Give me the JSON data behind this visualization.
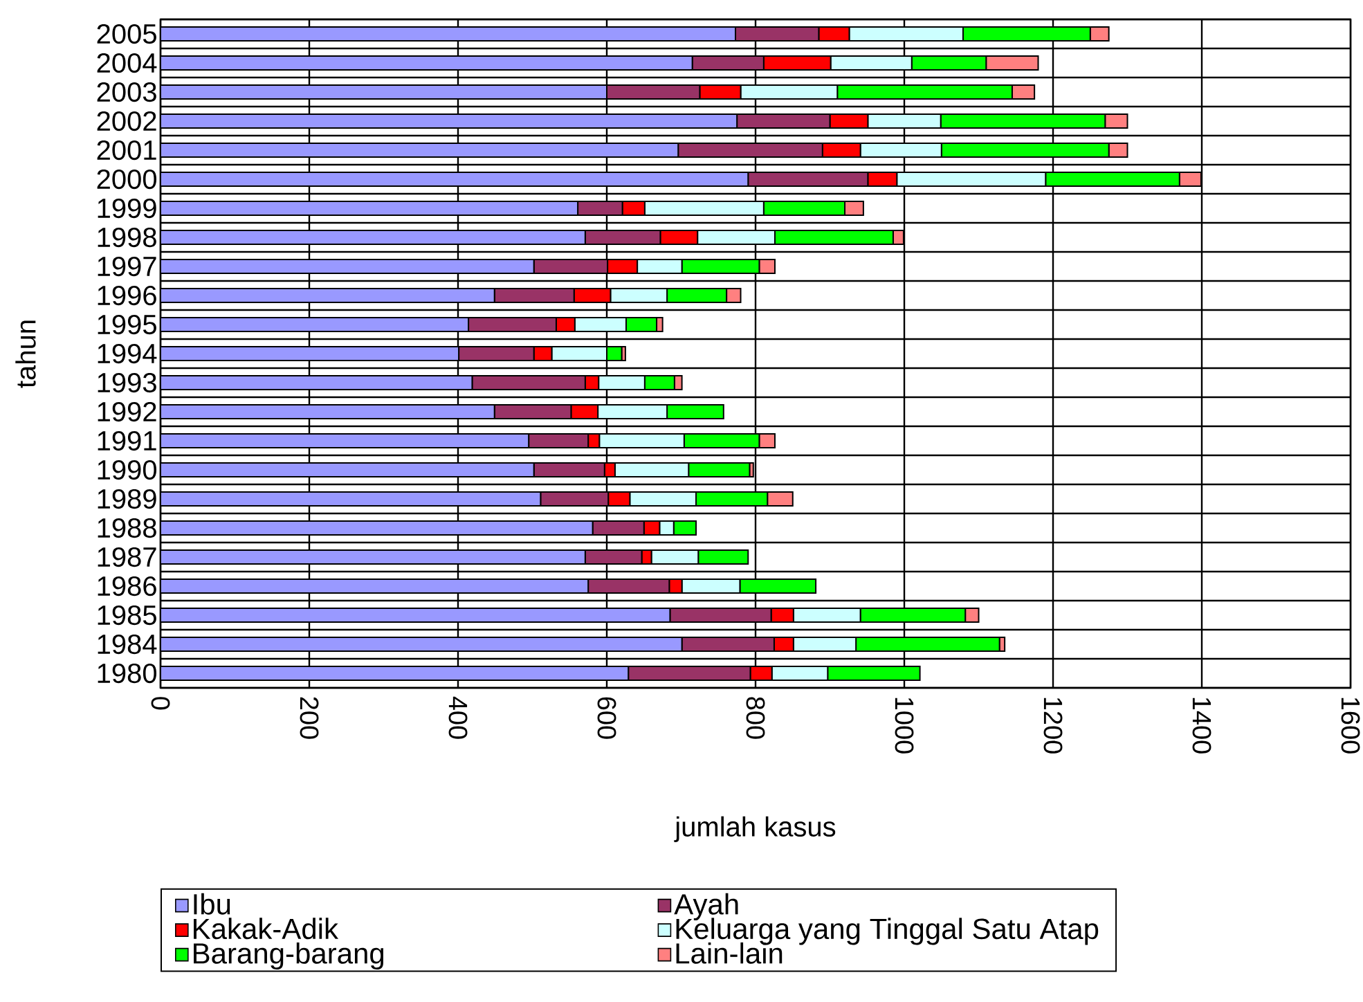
{
  "chart_data": {
    "type": "bar",
    "orientation": "horizontal",
    "stacked": true,
    "xlabel": "jumlah kasus",
    "ylabel": "tahun",
    "categories": [
      "2005",
      "2004",
      "2003",
      "2002",
      "2001",
      "2000",
      "1999",
      "1998",
      "1997",
      "1996",
      "1995",
      "1994",
      "1993",
      "1992",
      "1991",
      "1990",
      "1989",
      "1988",
      "1987",
      "1986",
      "1985",
      "1984",
      "1980"
    ],
    "series": [
      {
        "name": "Ibu",
        "color": "#9999ff",
        "values": [
          773,
          715,
          600,
          775,
          696,
          790,
          561,
          571,
          502,
          449,
          414,
          401,
          419,
          449,
          495,
          502,
          511,
          581,
          571,
          575,
          685,
          701,
          629
        ]
      },
      {
        "name": "Ayah",
        "color": "#993366",
        "values": [
          112,
          96,
          125,
          125,
          194,
          161,
          60,
          101,
          99,
          107,
          118,
          101,
          152,
          103,
          80,
          95,
          91,
          69,
          76,
          109,
          136,
          124,
          164
        ]
      },
      {
        "name": "Kakak-Adik",
        "color": "#ff0000",
        "values": [
          41,
          90,
          55,
          51,
          51,
          39,
          30,
          50,
          40,
          49,
          25,
          24,
          18,
          36,
          15,
          14,
          29,
          21,
          13,
          17,
          30,
          26,
          29
        ]
      },
      {
        "name": "Keluarga yang Tinggal Satu Atap",
        "color": "#ccffff",
        "values": [
          153,
          109,
          130,
          98,
          109,
          200,
          160,
          104,
          60,
          76,
          69,
          74,
          62,
          93,
          114,
          99,
          89,
          19,
          63,
          78,
          90,
          84,
          75
        ]
      },
      {
        "name": "Barang-barang",
        "color": "#00ff00",
        "values": [
          171,
          100,
          235,
          221,
          225,
          180,
          109,
          159,
          104,
          80,
          41,
          20,
          40,
          76,
          101,
          82,
          96,
          30,
          67,
          102,
          141,
          193,
          124
        ]
      },
      {
        "name": "Lain-lain",
        "color": "#ff8080",
        "values": [
          25,
          70,
          30,
          30,
          25,
          29,
          25,
          14,
          21,
          19,
          8,
          5,
          10,
          0,
          21,
          5,
          34,
          0,
          0,
          0,
          18,
          7,
          0
        ]
      }
    ],
    "xlim": [
      0,
      1600
    ],
    "xticks": [
      0,
      200,
      400,
      600,
      800,
      1000,
      1200,
      1400,
      1600
    ],
    "grid": true,
    "legend": "bottom"
  }
}
